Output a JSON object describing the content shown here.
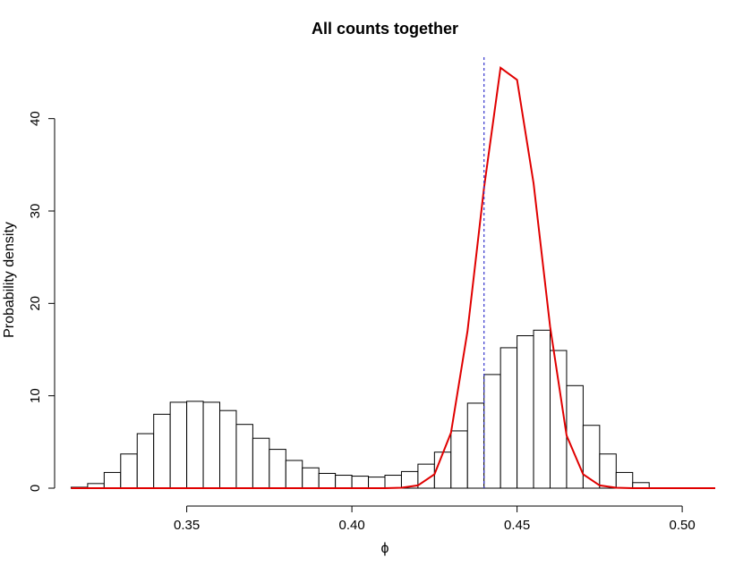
{
  "chart_data": {
    "type": "bar",
    "title": "All counts together",
    "xlabel": "ϕ",
    "ylabel": "Probability density",
    "xlim": [
      0.31,
      0.51
    ],
    "ylim": [
      0,
      48
    ],
    "x_ticks": [
      "0.35",
      "0.40",
      "0.45",
      "0.50"
    ],
    "y_ticks": [
      "0",
      "10",
      "20",
      "30",
      "40"
    ],
    "grid": false,
    "bin_width": 0.005,
    "bin_starts": [
      0.315,
      0.32,
      0.325,
      0.33,
      0.335,
      0.34,
      0.345,
      0.35,
      0.355,
      0.36,
      0.365,
      0.37,
      0.375,
      0.38,
      0.385,
      0.39,
      0.395,
      0.4,
      0.405,
      0.41,
      0.415,
      0.42,
      0.425,
      0.43,
      0.435,
      0.44,
      0.445,
      0.45,
      0.455,
      0.46,
      0.465,
      0.47,
      0.475,
      0.48,
      0.485
    ],
    "values": [
      0.1,
      0.5,
      1.7,
      3.7,
      5.9,
      8.0,
      9.3,
      9.4,
      9.3,
      8.4,
      6.9,
      5.4,
      4.2,
      3.0,
      2.2,
      1.6,
      1.4,
      1.3,
      1.2,
      1.4,
      1.8,
      2.6,
      3.9,
      6.2,
      9.2,
      12.3,
      15.2,
      16.5,
      17.1,
      14.9,
      11.1,
      6.8,
      3.7,
      1.7,
      0.6
    ],
    "series": [
      {
        "type": "line",
        "color": "#e00000",
        "x": [
          0.315,
          0.32,
          0.325,
          0.33,
          0.335,
          0.34,
          0.345,
          0.35,
          0.355,
          0.36,
          0.365,
          0.37,
          0.375,
          0.38,
          0.385,
          0.39,
          0.395,
          0.4,
          0.405,
          0.41,
          0.415,
          0.42,
          0.425,
          0.43,
          0.435,
          0.44,
          0.445,
          0.45,
          0.455,
          0.46,
          0.465,
          0.47,
          0.475,
          0.48,
          0.485,
          0.49,
          0.495,
          0.5,
          0.505,
          0.51
        ],
        "y": [
          0,
          0,
          0,
          0,
          0,
          0,
          0,
          0,
          0,
          0,
          0,
          0,
          0,
          0,
          0,
          0,
          0,
          0,
          0,
          0,
          0.05,
          0.3,
          1.5,
          6.0,
          17.0,
          32.5,
          45.5,
          44.2,
          33.0,
          17.5,
          5.7,
          1.5,
          0.3,
          0.05,
          0,
          0,
          0,
          0,
          0,
          0
        ]
      }
    ],
    "reference_line": {
      "x": 0.44,
      "color": "#3333cc",
      "style": "dashed"
    }
  }
}
